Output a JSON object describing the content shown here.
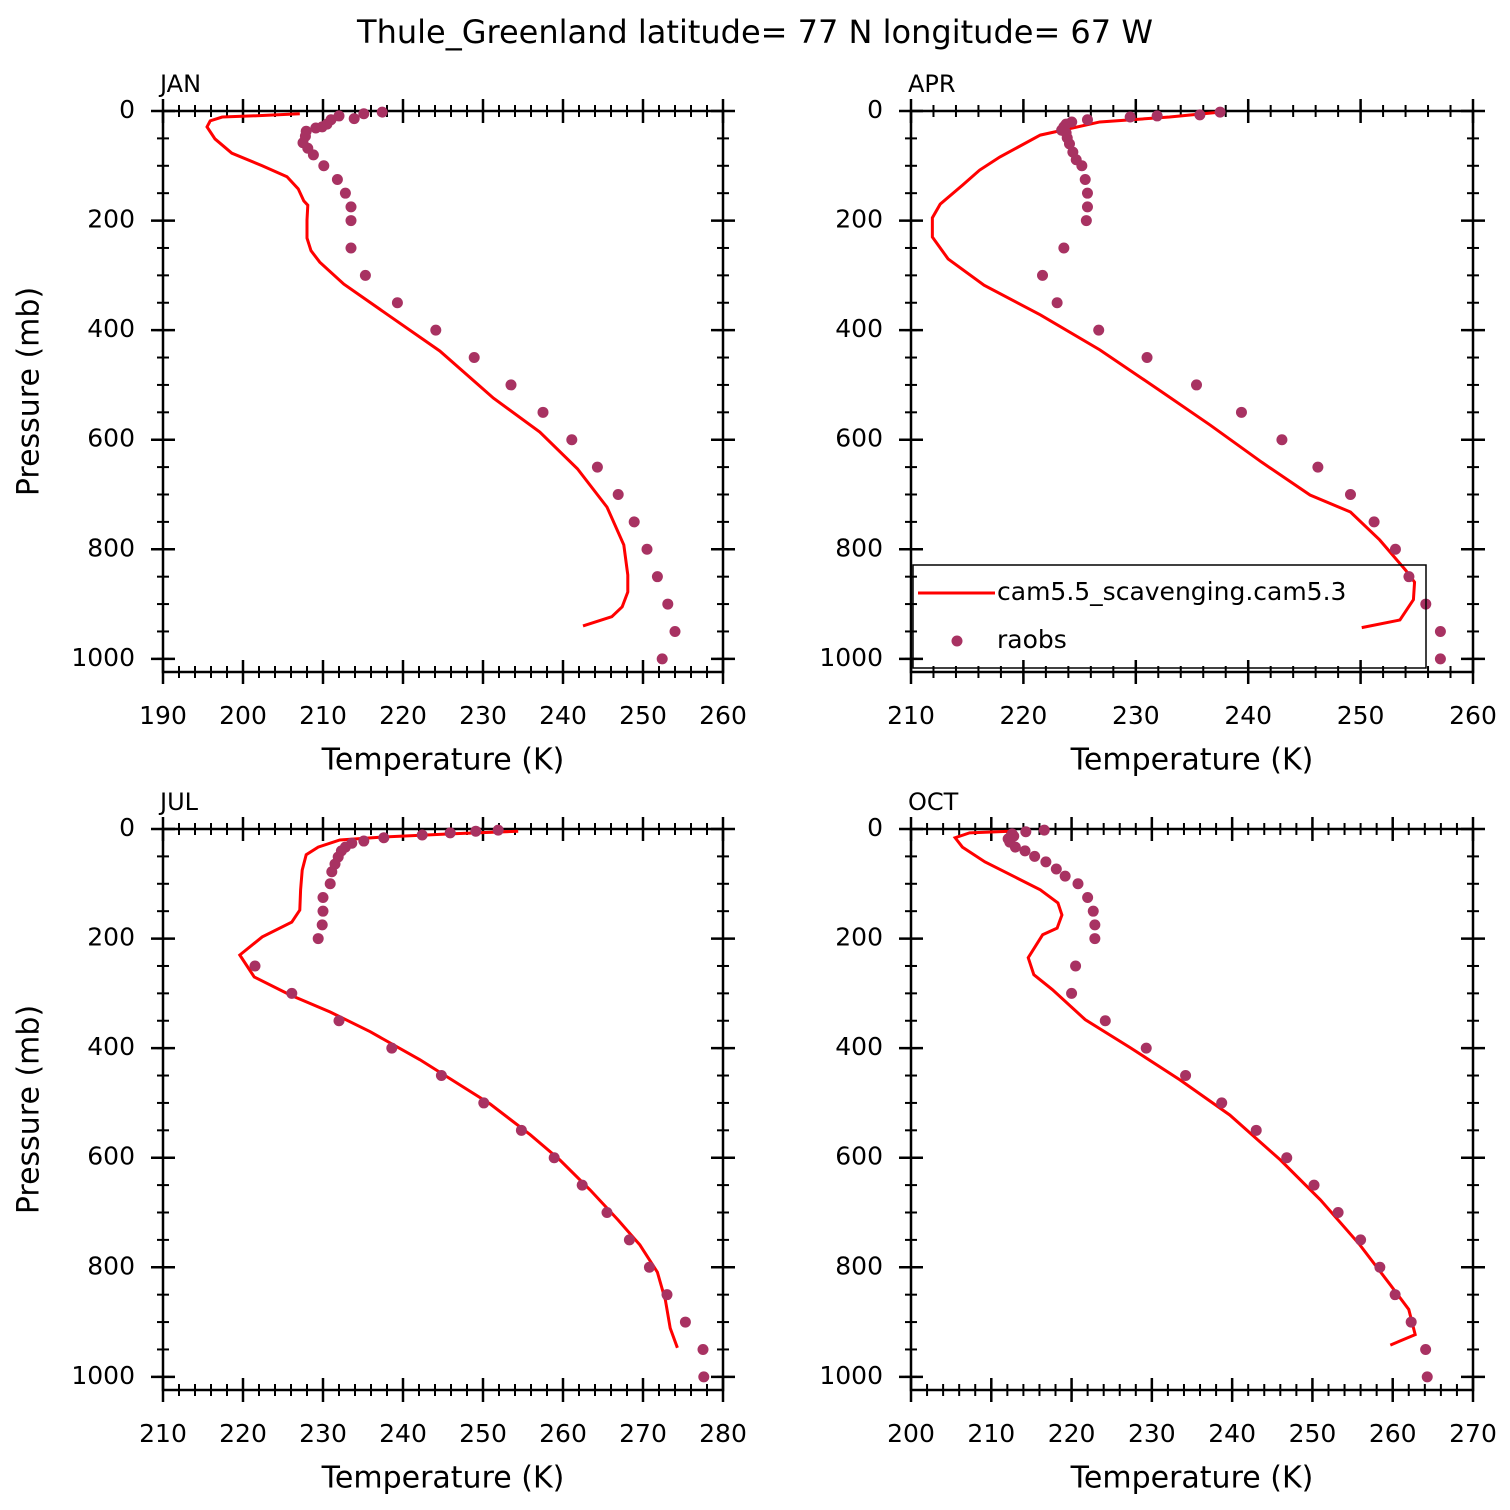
{
  "title": "Thule_Greenland  latitude= 77 N longitude= 67 W",
  "chart_data": [
    {
      "type": "line",
      "label": "JAN",
      "xlabel": "Temperature (K)",
      "ylabel": "Pressure (mb)",
      "xlim": [
        190,
        260
      ],
      "xticks": [
        190,
        200,
        210,
        220,
        230,
        240,
        250,
        260
      ],
      "xminor_step": 2,
      "ylim": [
        1024,
        0
      ],
      "yticks": [
        0,
        200,
        400,
        600,
        800,
        1000
      ],
      "yminor_step": 50,
      "series": [
        {
          "type": "line",
          "color": "#ff0000",
          "x": [
            207.1,
            201.1,
            197.4,
            195.9,
            195.5,
            196.5,
            198.6,
            202.4,
            205.5,
            206.9,
            207.6,
            208.1,
            208,
            208,
            208.5,
            209.6,
            212.6,
            218.1,
            224.6,
            231.3,
            237.1,
            241.8,
            245.5,
            247.6,
            248.1,
            248.1,
            247.4,
            246.1,
            242.5
          ],
          "y": [
            5,
            9,
            11,
            18,
            29,
            51,
            77,
            100,
            120,
            142,
            164,
            172,
            199,
            232,
            255,
            276,
            316,
            372,
            438,
            524,
            586,
            653,
            723,
            792,
            847,
            878,
            905,
            923,
            940
          ]
        },
        {
          "type": "scatter",
          "color": "#a83262",
          "x": [
            217.4,
            215.1,
            212,
            213.9,
            211,
            210.5,
            209.9,
            209.1,
            207.9,
            207.8,
            207.5,
            208.1,
            208.8,
            210.1,
            211.8,
            212.8,
            213.5,
            213.5,
            213.5,
            215.3,
            219.3,
            224.1,
            228.9,
            233.5,
            237.5,
            241.1,
            244.3,
            246.9,
            248.9,
            250.5,
            251.8,
            253.1,
            254,
            252.4
          ],
          "y": [
            2,
            5,
            9,
            14,
            16,
            24,
            29,
            31,
            37,
            46,
            58,
            68,
            80,
            100,
            125,
            150,
            175,
            200,
            250,
            300,
            350,
            400,
            450,
            500,
            550,
            600,
            650,
            700,
            750,
            800,
            850,
            900,
            950,
            1000
          ]
        }
      ]
    },
    {
      "type": "line",
      "label": "APR",
      "xlabel": "Temperature (K)",
      "xlim": [
        210,
        260
      ],
      "xticks": [
        210,
        220,
        230,
        240,
        250,
        260
      ],
      "xminor_step": 2,
      "ylim": [
        1024,
        0
      ],
      "yticks": [
        0,
        200,
        400,
        600,
        800,
        1000
      ],
      "yminor_step": 50,
      "legend": "lower right",
      "series": [
        {
          "type": "line",
          "name": "cam5.5_scavenging.cam5.3",
          "color": "#ff0000",
          "x": [
            237.5,
            233,
            226.8,
            221.5,
            217.9,
            216.1,
            214.6,
            212.6,
            211.9,
            211.9,
            213.3,
            216.5,
            221.5,
            226.8,
            232.2,
            236.6,
            241.2,
            245.5,
            249.1,
            251.7,
            254,
            254.8,
            254.7,
            253.5,
            250.1
          ],
          "y": [
            2,
            11,
            20,
            44,
            84,
            108,
            135,
            170,
            195,
            230,
            270,
            318,
            372,
            436,
            511,
            573,
            641,
            701,
            732,
            783,
            838,
            860,
            892,
            929,
            943
          ]
        },
        {
          "type": "scatter",
          "name": "raobs",
          "color": "#a83262",
          "x": [
            237.5,
            235.7,
            231.9,
            229.5,
            225.7,
            224.3,
            223.8,
            223.6,
            223.4,
            223.8,
            223.9,
            224.1,
            224.4,
            224.7,
            225.2,
            225.5,
            225.7,
            225.7,
            225.6,
            223.6,
            221.7,
            223,
            226.7,
            231,
            235.4,
            239.4,
            243,
            246.2,
            249.1,
            251.2,
            253.1,
            254.3,
            255.8,
            257.1,
            257.1
          ],
          "y": [
            2,
            7,
            9,
            11,
            16,
            20,
            24,
            29,
            35,
            40,
            49,
            60,
            75,
            89,
            100,
            125,
            150,
            175,
            200,
            250,
            300,
            350,
            400,
            450,
            500,
            550,
            600,
            650,
            700,
            750,
            800,
            850,
            900,
            950,
            1000
          ]
        }
      ]
    },
    {
      "type": "line",
      "label": "JUL",
      "xlabel": "Temperature (K)",
      "ylabel": "Pressure (mb)",
      "xlim": [
        210,
        280
      ],
      "xticks": [
        210,
        220,
        230,
        240,
        250,
        260,
        270,
        280
      ],
      "xminor_step": 2,
      "ylim": [
        1024,
        0
      ],
      "yticks": [
        0,
        200,
        400,
        600,
        800,
        1000
      ],
      "yminor_step": 50,
      "series": [
        {
          "type": "line",
          "color": "#ff0000",
          "x": [
            254.4,
            245.9,
            237.1,
            232.1,
            229.4,
            227.9,
            227.4,
            227.2,
            227.1,
            226.1,
            222.4,
            219.6,
            221.4,
            225.9,
            230.9,
            235.9,
            242.1,
            250.9,
            255.9,
            259.6,
            263.4,
            266.9,
            269.6,
            271.8,
            272.8,
            273.4,
            274.3
          ],
          "y": [
            4,
            9,
            15,
            20,
            33,
            47,
            75,
            111,
            148,
            170,
            197,
            230,
            270,
            303,
            334,
            370,
            421,
            502,
            558,
            604,
            659,
            714,
            759,
            809,
            860,
            911,
            947
          ]
        },
        {
          "type": "scatter",
          "color": "#a83262",
          "x": [
            251.9,
            249.1,
            245.9,
            242.4,
            237.6,
            235.1,
            233.6,
            232.8,
            232.3,
            231.9,
            231.5,
            231.1,
            230.9,
            230,
            230,
            229.9,
            229.4,
            221.5,
            226.1,
            232,
            238.6,
            244.8,
            250.1,
            254.8,
            258.9,
            262.4,
            265.5,
            268.3,
            270.8,
            273,
            275.3,
            277.5,
            277.6
          ],
          "y": [
            2,
            4,
            7,
            11,
            16,
            22,
            26,
            33,
            40,
            51,
            64,
            78,
            100,
            125,
            150,
            175,
            200,
            250,
            300,
            350,
            400,
            450,
            500,
            550,
            600,
            650,
            700,
            750,
            800,
            850,
            900,
            950,
            1000
          ]
        }
      ]
    },
    {
      "type": "line",
      "label": "OCT",
      "xlabel": "Temperature (K)",
      "xlim": [
        200,
        270
      ],
      "xticks": [
        200,
        210,
        220,
        230,
        240,
        250,
        260,
        270
      ],
      "xminor_step": 2,
      "ylim": [
        1024,
        0
      ],
      "yticks": [
        0,
        200,
        400,
        600,
        800,
        1000
      ],
      "yminor_step": 50,
      "series": [
        {
          "type": "line",
          "color": "#ff0000",
          "x": [
            212.3,
            207.3,
            205.5,
            206.4,
            209.2,
            213,
            216.1,
            218.3,
            218.8,
            218.2,
            216.4,
            214.6,
            215.3,
            217.6,
            221.7,
            227.3,
            233.5,
            239.7,
            246,
            251,
            255.9,
            259.7,
            262,
            262.8,
            259.7
          ],
          "y": [
            4,
            7,
            16,
            33,
            60,
            88,
            111,
            135,
            157,
            181,
            193,
            235,
            266,
            293,
            348,
            399,
            458,
            522,
            604,
            677,
            759,
            832,
            877,
            923,
            942
          ]
        },
        {
          "type": "scatter",
          "color": "#a83262",
          "x": [
            216.6,
            214.3,
            212.6,
            212.8,
            212.1,
            212.3,
            213,
            214.2,
            215.4,
            216.8,
            218.1,
            219.2,
            220.8,
            222,
            222.7,
            222.9,
            222.9,
            220.5,
            220,
            224.2,
            229.3,
            234.2,
            238.7,
            243,
            246.8,
            250.2,
            253.2,
            256,
            258.4,
            260.3,
            262.3,
            264.1,
            264.3
          ],
          "y": [
            2,
            5,
            9,
            13,
            18,
            24,
            33,
            40,
            50,
            60,
            73,
            86,
            100,
            125,
            150,
            175,
            200,
            250,
            300,
            350,
            400,
            450,
            500,
            550,
            600,
            650,
            700,
            750,
            800,
            850,
            900,
            950,
            1000
          ]
        }
      ]
    }
  ]
}
